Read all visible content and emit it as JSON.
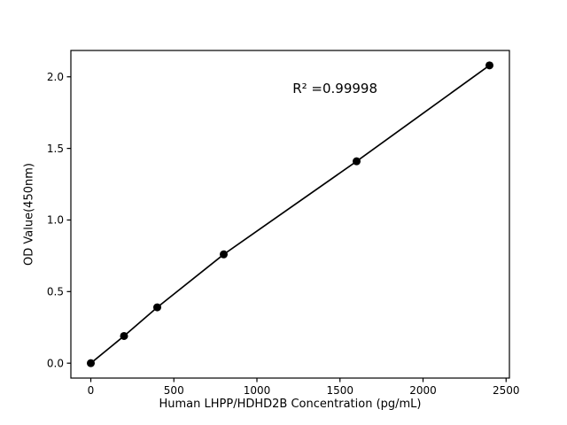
{
  "chart_data": {
    "type": "line",
    "title": "",
    "xlabel": "Human LHPP/HDHD2B Concentration (pg/mL)",
    "ylabel": "OD Value(450nm)",
    "x": [
      0,
      200,
      400,
      800,
      1600,
      2400
    ],
    "y": [
      0.0,
      0.19,
      0.39,
      0.76,
      1.41,
      2.08
    ],
    "xlim": [
      -120,
      2520
    ],
    "ylim": [
      -0.104,
      2.184
    ],
    "xticks": [
      0,
      500,
      1000,
      1500,
      2000,
      2500
    ],
    "xtick_labels": [
      "0",
      "500",
      "1000",
      "1500",
      "2000",
      "2500"
    ],
    "yticks": [
      0,
      0.5,
      1,
      1.5,
      2
    ],
    "ytick_labels": [
      "0.0",
      "0.5",
      "1.0",
      "1.5",
      "2.0"
    ],
    "grid": false,
    "legend": null,
    "line_color": "#000000",
    "marker": "circle",
    "marker_color": "#000000",
    "axis_color": "#000000",
    "background_color": "#ffffff",
    "annotation": {
      "text": "R² =0.99998",
      "x": 1470,
      "y": 1.92
    }
  }
}
